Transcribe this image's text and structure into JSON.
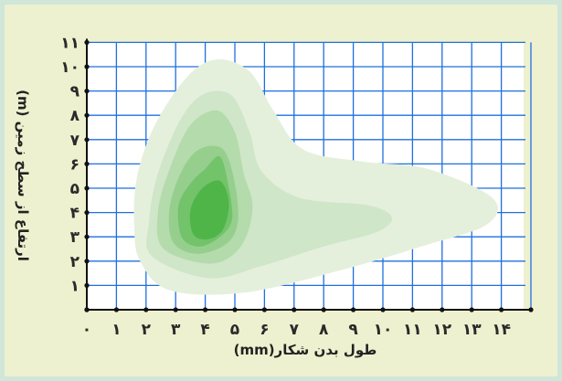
{
  "chart_data": {
    "type": "contour",
    "title": "",
    "xlabel": "طول بدن شکار(mm)",
    "ylabel": "ارتفاع از سطح زمین (m)",
    "x_ticks": [
      "۰",
      "۱",
      "۲",
      "۳",
      "۴",
      "۵",
      "۶",
      "۷",
      "۸",
      "۹",
      "۱۰",
      "۱۱",
      "۱۲",
      "۱۳",
      "۱۴"
    ],
    "y_ticks": [
      "۱",
      "۲",
      "۳",
      "۴",
      "۵",
      "۶",
      "۷",
      "۸",
      "۹",
      "۱۰",
      "۱۱"
    ],
    "xlim": [
      0,
      15
    ],
    "ylim": [
      0,
      11
    ],
    "grid": true,
    "grid_color": "#1f6fe0",
    "contour_colors": [
      "#e4f0dc",
      "#cfe6c8",
      "#b4dbab",
      "#96cf8d",
      "#73c36b",
      "#4fb548"
    ],
    "contour_levels": [
      {
        "level": 1,
        "points": [
          [
            1.8,
            2.0
          ],
          [
            1.6,
            3.5
          ],
          [
            1.7,
            5.5
          ],
          [
            2.3,
            7.6
          ],
          [
            3.4,
            9.6
          ],
          [
            4.4,
            10.3
          ],
          [
            5.5,
            9.8
          ],
          [
            6.3,
            8.2
          ],
          [
            7.3,
            6.6
          ],
          [
            9.3,
            6.1
          ],
          [
            11.5,
            5.8
          ],
          [
            13.7,
            4.6
          ],
          [
            13.5,
            3.5
          ],
          [
            11.3,
            2.6
          ],
          [
            8.5,
            1.6
          ],
          [
            5.3,
            0.7
          ],
          [
            2.8,
            0.8
          ]
        ]
      },
      {
        "level": 2,
        "points": [
          [
            2.2,
            2.2
          ],
          [
            2.1,
            3.6
          ],
          [
            2.4,
            5.6
          ],
          [
            3.2,
            7.9
          ],
          [
            4.0,
            8.9
          ],
          [
            4.9,
            8.8
          ],
          [
            5.5,
            7.3
          ],
          [
            5.9,
            5.7
          ],
          [
            7.2,
            4.6
          ],
          [
            9.5,
            4.3
          ],
          [
            10.3,
            3.8
          ],
          [
            9.8,
            3.2
          ],
          [
            8.0,
            2.6
          ],
          [
            5.9,
            1.8
          ],
          [
            4.1,
            1.3
          ]
        ]
      },
      {
        "level": 3,
        "points": [
          [
            2.6,
            2.5
          ],
          [
            2.4,
            4.0
          ],
          [
            2.8,
            5.8
          ],
          [
            3.5,
            7.6
          ],
          [
            4.4,
            8.2
          ],
          [
            5.0,
            7.3
          ],
          [
            5.3,
            5.6
          ],
          [
            5.6,
            4.2
          ],
          [
            5.2,
            2.6
          ],
          [
            4.2,
            1.9
          ]
        ]
      },
      {
        "level": 4,
        "points": [
          [
            2.9,
            2.8
          ],
          [
            2.8,
            4.2
          ],
          [
            3.2,
            5.7
          ],
          [
            3.8,
            6.6
          ],
          [
            4.6,
            6.6
          ],
          [
            5.0,
            5.2
          ],
          [
            5.1,
            3.6
          ],
          [
            4.7,
            2.7
          ],
          [
            3.7,
            2.3
          ]
        ]
      },
      {
        "level": 5,
        "points": [
          [
            3.2,
            3.0
          ],
          [
            3.1,
            4.3
          ],
          [
            3.5,
            5.2
          ],
          [
            4.0,
            5.8
          ],
          [
            4.5,
            6.3
          ],
          [
            4.8,
            5.0
          ],
          [
            4.9,
            3.7
          ],
          [
            4.5,
            3.0
          ],
          [
            3.8,
            2.6
          ]
        ]
      },
      {
        "level": 6,
        "points": [
          [
            3.6,
            3.1
          ],
          [
            3.5,
            4.1
          ],
          [
            3.9,
            5.0
          ],
          [
            4.5,
            5.3
          ],
          [
            4.8,
            4.4
          ],
          [
            4.6,
            3.3
          ],
          [
            4.1,
            2.9
          ]
        ]
      }
    ]
  }
}
